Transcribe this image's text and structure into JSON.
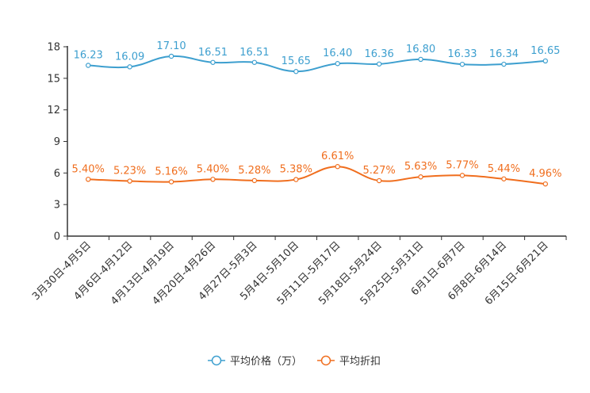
{
  "chart_data": {
    "type": "line",
    "title": "",
    "xlabel": "",
    "ylabel": "",
    "ylim": [
      0,
      18
    ],
    "yticks": [
      0,
      3,
      6,
      9,
      12,
      15,
      18
    ],
    "categories": [
      "3月30日-4月5日",
      "4月6日-4月12日",
      "4月13日-4月19日",
      "4月20日-4月26日",
      "4月27日-5月3日",
      "5月4日-5月10日",
      "5月11日-5月17日",
      "5月18日-5月24日",
      "5月25日-5月31日",
      "6月1日-6月7日",
      "6月8日-6月14日",
      "6月15日-6月21日"
    ],
    "series": [
      {
        "name": "平均价格（万）",
        "color": "#3d9fcf",
        "values": [
          16.23,
          16.09,
          17.1,
          16.51,
          16.51,
          15.65,
          16.4,
          16.36,
          16.8,
          16.33,
          16.34,
          16.65
        ],
        "labels": [
          "16.23",
          "16.09",
          "17.10",
          "16.51",
          "16.51",
          "15.65",
          "16.40",
          "16.36",
          "16.80",
          "16.33",
          "16.34",
          "16.65"
        ]
      },
      {
        "name": "平均折扣",
        "color": "#f06e1e",
        "values": [
          5.4,
          5.23,
          5.16,
          5.4,
          5.28,
          5.38,
          6.61,
          5.27,
          5.63,
          5.77,
          5.44,
          4.96
        ],
        "labels": [
          "5.40%",
          "5.23%",
          "5.16%",
          "5.40%",
          "5.28%",
          "5.38%",
          "6.61%",
          "5.27%",
          "5.63%",
          "5.77%",
          "5.44%",
          "4.96%"
        ]
      }
    ],
    "legend": "bottom"
  }
}
